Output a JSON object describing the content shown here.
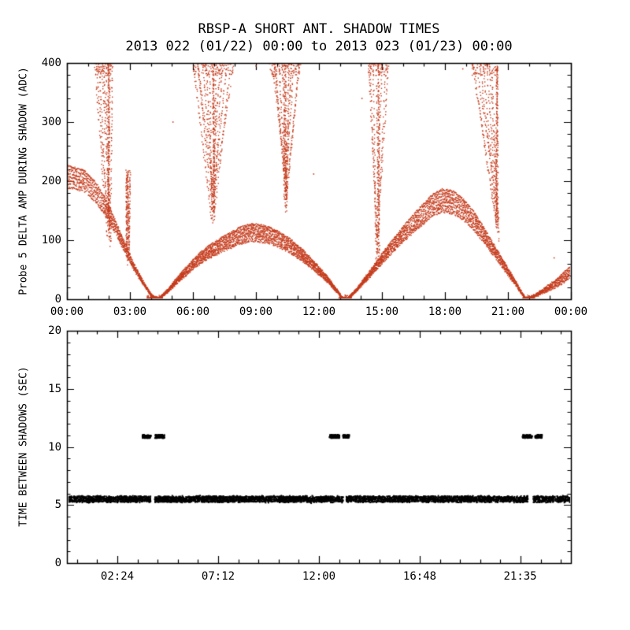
{
  "figure": {
    "background": "#ffffff",
    "axis_color": "#000000"
  },
  "chart_data": [
    {
      "type": "scatter",
      "panel": "top",
      "title": "RBSP-A SHORT ANT. SHADOW TIMES",
      "subtitle": "2013 022 (01/22) 00:00 to 2013 023 (01/23) 00:00",
      "xlabel": "",
      "ylabel": "Probe 5 DELTA AMP DURING SHADOW (ADC)",
      "xlim": [
        0,
        24
      ],
      "ylim": [
        0,
        400
      ],
      "point_color": "#C53B1C",
      "xticks": {
        "major": [
          0,
          3,
          6,
          9,
          12,
          15,
          18,
          21,
          24
        ],
        "minor_step": 1,
        "labels": [
          "00:00",
          "03:00",
          "06:00",
          "09:00",
          "12:00",
          "15:00",
          "18:00",
          "21:00",
          "00:00"
        ]
      },
      "yticks": {
        "major": [
          0,
          100,
          200,
          300,
          400
        ],
        "minor_step": 20,
        "labels": [
          "0",
          "100",
          "200",
          "300",
          "400"
        ]
      },
      "series": {
        "arches": [
          {
            "x_points": [
              -0.6,
              0.2,
              0.8,
              1.4,
              2.0,
              2.6,
              3.1,
              3.6,
              4.0,
              4.25
            ],
            "y_points": [
              230,
              224,
              218,
              196,
              158,
              108,
              66,
              32,
              8,
              0
            ],
            "layers": 7,
            "fan_min": 0.84
          },
          {
            "x_points": [
              4.35,
              4.8,
              5.4,
              6.0,
              6.6,
              7.4,
              8.2,
              8.8,
              9.4,
              10.0,
              10.6,
              11.2,
              11.8,
              12.4,
              12.9,
              13.15
            ],
            "y_points": [
              0,
              16,
              42,
              66,
              86,
              104,
              120,
              127,
              124,
              116,
              102,
              84,
              62,
              38,
              14,
              0
            ],
            "layers": 8,
            "fan_min": 0.78
          },
          {
            "x_points": [
              13.35,
              13.8,
              14.4,
              15.0,
              15.6,
              16.2,
              16.8,
              17.4,
              17.9,
              18.4,
              18.9,
              19.4,
              19.9,
              20.4,
              20.9,
              21.4,
              21.85
            ],
            "y_points": [
              0,
              18,
              46,
              76,
              104,
              130,
              154,
              176,
              186,
              182,
              168,
              146,
              118,
              88,
              58,
              28,
              0
            ],
            "layers": 8,
            "fan_min": 0.8
          },
          {
            "x_points": [
              21.95,
              22.4,
              22.9,
              23.4,
              23.9,
              24.4
            ],
            "y_points": [
              0,
              10,
              22,
              36,
              52,
              66
            ],
            "layers": 6,
            "fan_min": 0.65
          }
        ],
        "plumes": [
          {
            "x_top": 1.75,
            "w_top": 0.4,
            "y_top": 400,
            "x_base": 2.0,
            "y_base": [
              88,
              150
            ],
            "streaks": 9
          },
          {
            "x_top": 2.92,
            "w_top": 0.1,
            "y_top": 215,
            "x_base": 2.9,
            "y_base": [
              60,
              100
            ],
            "streaks": 3
          },
          {
            "x_top": 6.95,
            "w_top": 0.95,
            "y_top": 400,
            "x_base": 6.95,
            "y_base": [
              128,
              195
            ],
            "streaks": 13
          },
          {
            "x_top": 10.4,
            "w_top": 0.75,
            "y_top": 400,
            "x_base": 10.4,
            "y_base": [
              148,
              215
            ],
            "streaks": 11
          },
          {
            "x_top": 14.8,
            "w_top": 0.5,
            "y_top": 400,
            "x_base": 14.8,
            "y_base": [
              45,
              110
            ],
            "streaks": 8
          },
          {
            "x_top": 19.9,
            "w_top": 0.65,
            "y_top": 400,
            "x_base": 20.5,
            "y_base": [
              100,
              145
            ],
            "streaks": 10
          }
        ],
        "zero_blobs": {
          "x_ranges": [
            [
              3.8,
              4.55
            ],
            [
              12.95,
              13.55
            ],
            [
              21.7,
              22.2
            ]
          ],
          "n_per": 160
        },
        "stray_points": [
          [
            5.05,
            300
          ],
          [
            9.0,
            395
          ],
          [
            11.75,
            212
          ],
          [
            14.05,
            340
          ],
          [
            18.85,
            390
          ],
          [
            23.2,
            70
          ]
        ]
      }
    },
    {
      "type": "scatter",
      "panel": "bottom",
      "title": "",
      "xlabel": "",
      "ylabel": "TIME BETWEEN SHADOWS (SEC)",
      "xlim": [
        0,
        24
      ],
      "ylim": [
        0,
        20
      ],
      "point_color": "#000000",
      "xticks": {
        "major": [
          2.4,
          7.2,
          12.0,
          16.8,
          21.5833
        ],
        "minor_step": 0.96,
        "labels": [
          "02:24",
          "07:12",
          "12:00",
          "16:48",
          "21:35"
        ]
      },
      "yticks": {
        "major": [
          0,
          5,
          10,
          15,
          20
        ],
        "minor_step": 1,
        "labels": [
          "0",
          "5",
          "10",
          "15",
          "20"
        ]
      },
      "series": {
        "main_band": {
          "y_center": 5.5,
          "y_halfwidth": 0.25,
          "x_start": 0.1,
          "x_end": 23.95,
          "gaps": [
            [
              4.0,
              4.18
            ],
            [
              13.15,
              13.3
            ],
            [
              21.95,
              22.2
            ]
          ]
        },
        "upper_clusters": {
          "y_center": 10.9,
          "y_halfwidth": 0.14,
          "x_ranges": [
            [
              3.6,
              4.0
            ],
            [
              4.2,
              4.65
            ],
            [
              12.5,
              13.0
            ],
            [
              13.15,
              13.45
            ],
            [
              21.7,
              22.15
            ],
            [
              22.3,
              22.62
            ]
          ]
        }
      }
    }
  ]
}
